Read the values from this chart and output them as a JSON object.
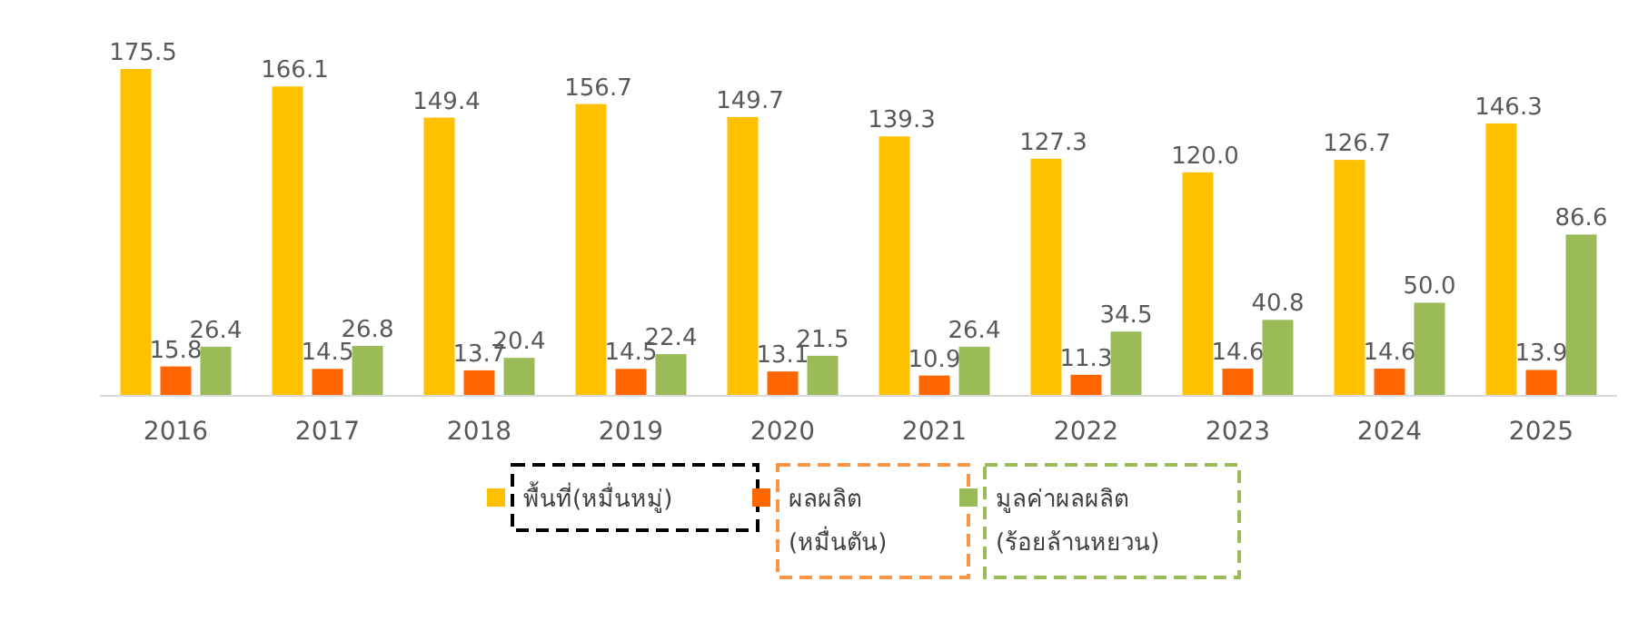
{
  "chart_data": {
    "type": "bar",
    "categories": [
      "2016",
      "2017",
      "2018",
      "2019",
      "2020",
      "2021",
      "2022",
      "2023",
      "2024",
      "2025"
    ],
    "series": [
      {
        "name": "พื้นที่(หมื่นหมู่)",
        "color": "#ffc000",
        "values": [
          175.5,
          166.1,
          149.4,
          156.7,
          149.7,
          139.3,
          127.3,
          120.0,
          126.7,
          146.3
        ],
        "value_labels": [
          "175.5",
          "166.1",
          "149.4",
          "156.7",
          "149.7",
          "139.3",
          "127.3",
          "120.0",
          "126.7",
          "146.3"
        ]
      },
      {
        "name": "ผลผลิต\n(หมื่นตัน)",
        "color": "#ff6600",
        "values": [
          15.8,
          14.5,
          13.7,
          14.5,
          13.1,
          10.9,
          11.3,
          14.6,
          14.6,
          13.9
        ],
        "value_labels": [
          "15.8",
          "14.5",
          "13.7",
          "14.5",
          "13.1",
          "10.9",
          "11.3",
          "14.6",
          "14.6",
          "13.9"
        ]
      },
      {
        "name": "มูลค่าผลผลิต\n(ร้อยล้านหยวน)",
        "color": "#9bbb59",
        "values": [
          26.4,
          26.8,
          20.4,
          22.4,
          21.5,
          26.4,
          34.5,
          40.8,
          50.0,
          86.6
        ],
        "value_labels": [
          "26.4",
          "26.8",
          "20.4",
          "22.4",
          "21.5",
          "26.4",
          "34.5",
          "40.8",
          "50.0",
          "86.6"
        ]
      }
    ],
    "legend": "bottom",
    "grid": false
  }
}
